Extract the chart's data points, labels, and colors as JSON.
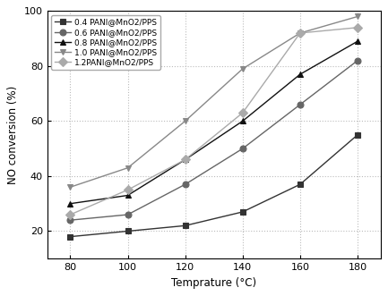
{
  "x": [
    80,
    100,
    120,
    140,
    160,
    180
  ],
  "series": [
    {
      "label": "0.4 PANI@MnO2/PPS",
      "y": [
        18,
        20,
        22,
        27,
        37,
        55
      ],
      "marker": "s",
      "color": "#333333",
      "mfc": "#333333"
    },
    {
      "label": "0.6 PANI@MnO2/PPS",
      "y": [
        24,
        26,
        37,
        50,
        66,
        82
      ],
      "marker": "o",
      "color": "#666666",
      "mfc": "#666666"
    },
    {
      "label": "0.8 PANI@MnO2/PPS",
      "y": [
        30,
        33,
        46,
        60,
        77,
        89
      ],
      "marker": "^",
      "color": "#111111",
      "mfc": "#111111"
    },
    {
      "label": "1.0 PANI@MnO2/PPS",
      "y": [
        36,
        43,
        60,
        79,
        92,
        98
      ],
      "marker": "v",
      "color": "#888888",
      "mfc": "#888888"
    },
    {
      "label": "1.2PANI@MnO2/PPS",
      "y": [
        26,
        35,
        46,
        63,
        92,
        94
      ],
      "marker": "D",
      "color": "#aaaaaa",
      "mfc": "#aaaaaa"
    }
  ],
  "xlabel": "Temprature (°C)",
  "ylabel": "NO conversion (%)",
  "xlim": [
    72,
    188
  ],
  "ylim": [
    10,
    100
  ],
  "xticks": [
    80,
    100,
    120,
    140,
    160,
    180
  ],
  "yticks": [
    20,
    40,
    60,
    80,
    100
  ],
  "grid_color": "#bbbbbb",
  "grid_linestyle": ":",
  "legend_loc": "upper left",
  "line_width": 1.0,
  "marker_size": 5,
  "background_color": "#ffffff",
  "figsize": [
    4.33,
    3.31
  ],
  "dpi": 100
}
